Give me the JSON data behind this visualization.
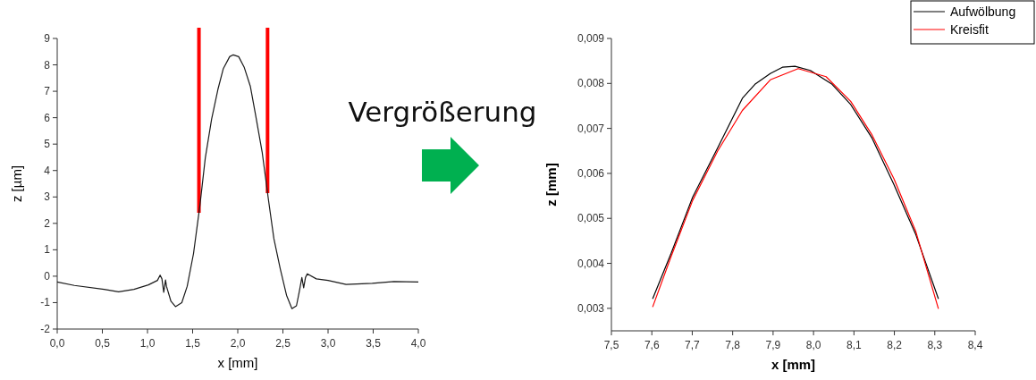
{
  "chart_data": [
    {
      "type": "line",
      "xlabel": "x [mm]",
      "ylabel": "z [µm]",
      "annotations": [
        "Vergrößerung"
      ],
      "x": [
        0,
        0.19,
        0.52,
        0.68,
        0.85,
        1.01,
        1.11,
        1.14,
        1.16,
        1.18,
        1.2,
        1.21,
        1.26,
        1.31,
        1.38,
        1.44,
        1.51,
        1.58,
        1.64,
        1.71,
        1.78,
        1.84,
        1.91,
        1.95,
        2.01,
        2.07,
        2.14,
        2.2,
        2.27,
        2.34,
        2.4,
        2.47,
        2.54,
        2.6,
        2.65,
        2.68,
        2.71,
        2.73,
        2.75,
        2.77,
        2.87,
        3.0,
        3.2,
        3.49,
        3.73,
        4.0
      ],
      "series": [
        {
          "color": "#1a1a1a",
          "values": [
            -0.22,
            -0.35,
            -0.5,
            -0.59,
            -0.5,
            -0.33,
            -0.16,
            0.04,
            -0.1,
            -0.61,
            -0.14,
            -0.38,
            -0.95,
            -1.15,
            -1.0,
            -0.38,
            0.86,
            2.66,
            4.47,
            5.94,
            7.07,
            7.86,
            8.31,
            8.38,
            8.31,
            7.92,
            7.18,
            6.05,
            4.7,
            2.89,
            1.42,
            0.29,
            -0.72,
            -1.23,
            -1.12,
            -0.61,
            -0.05,
            -0.44,
            -0.05,
            0.09,
            -0.1,
            -0.16,
            -0.31,
            -0.27,
            -0.2,
            -0.22
          ]
        }
      ],
      "ref_lines": [
        {
          "axis": "x",
          "value": 1.57,
          "color": "#ff0000"
        },
        {
          "axis": "x",
          "value": 2.33,
          "color": "#ff0000"
        }
      ],
      "xlim": [
        0,
        4
      ],
      "ylim": [
        -2,
        9
      ],
      "xticks": [
        {
          "value": 0,
          "label": "0,0"
        },
        {
          "value": 0.5,
          "label": "0,5"
        },
        {
          "value": 1,
          "label": "1,0"
        },
        {
          "value": 1.5,
          "label": "1,5"
        },
        {
          "value": 2,
          "label": "2,0"
        },
        {
          "value": 2.5,
          "label": "2,5"
        },
        {
          "value": 3,
          "label": "3,0"
        },
        {
          "value": 3.5,
          "label": "3,5"
        },
        {
          "value": 4,
          "label": "4,0"
        }
      ],
      "yticks": [
        -2,
        -1,
        0,
        1,
        2,
        3,
        4,
        5,
        6,
        7,
        8,
        9
      ]
    },
    {
      "type": "line",
      "xlabel": "x [mm]",
      "ylabel": "z [mm]",
      "legend": "top right",
      "series": [
        {
          "name": "Aufwölbung",
          "color": "#000000",
          "x": [
            7.602,
            7.648,
            7.701,
            7.763,
            7.824,
            7.855,
            7.893,
            7.923,
            7.954,
            7.992,
            8.046,
            8.092,
            8.145,
            8.199,
            8.253,
            8.309
          ],
          "values": [
            0.00321,
            0.00423,
            0.00547,
            0.00657,
            0.00767,
            0.00798,
            0.00822,
            0.00836,
            0.00838,
            0.00829,
            0.00798,
            0.00753,
            0.00678,
            0.00575,
            0.00464,
            0.00321
          ]
        },
        {
          "name": "Kreisfit",
          "color": "#ff0000",
          "x": [
            7.602,
            7.648,
            7.701,
            7.763,
            7.824,
            7.893,
            7.962,
            8.031,
            8.092,
            8.145,
            8.199,
            8.253,
            8.309
          ],
          "values": [
            0.00303,
            0.00416,
            0.0054,
            0.0065,
            0.0074,
            0.00808,
            0.00833,
            0.00815,
            0.0076,
            0.00685,
            0.00588,
            0.00471,
            0.00299
          ]
        }
      ],
      "xlim": [
        7.5,
        8.4
      ],
      "ylim": [
        0.0025,
        0.009
      ],
      "xticks": [
        {
          "value": 7.5,
          "label": "7,5"
        },
        {
          "value": 7.6,
          "label": "7,6"
        },
        {
          "value": 7.7,
          "label": "7,7"
        },
        {
          "value": 7.8,
          "label": "7,8"
        },
        {
          "value": 7.9,
          "label": "7,9"
        },
        {
          "value": 8.0,
          "label": "8,0"
        },
        {
          "value": 8.1,
          "label": "8,1"
        },
        {
          "value": 8.2,
          "label": "8,2"
        },
        {
          "value": 8.3,
          "label": "8,3"
        },
        {
          "value": 8.4,
          "label": "8,4"
        }
      ],
      "yticks": [
        {
          "value": 0.003,
          "label": "0,003"
        },
        {
          "value": 0.004,
          "label": "0,004"
        },
        {
          "value": 0.005,
          "label": "0,005"
        },
        {
          "value": 0.006,
          "label": "0,006"
        },
        {
          "value": 0.007,
          "label": "0,007"
        },
        {
          "value": 0.008,
          "label": "0,008"
        },
        {
          "value": 0.009,
          "label": "0,009"
        }
      ]
    }
  ]
}
